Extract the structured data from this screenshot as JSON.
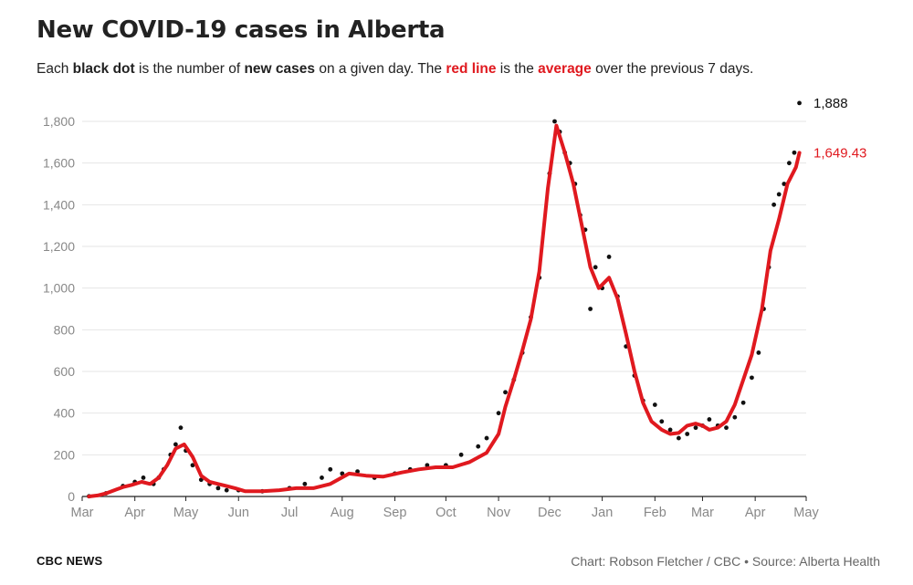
{
  "title": "New COVID-19 cases in Alberta",
  "subtitle": {
    "p1": "Each ",
    "p2": "black dot",
    "p3": " is the number of ",
    "p4": "new cases",
    "p5": " on a given day. The ",
    "p6": "red line",
    "p7": " is the ",
    "p8": "average",
    "p9": " over the previous 7 days."
  },
  "footer": {
    "left": "CBC NEWS",
    "right": "Chart: Robson Fletcher / CBC • Source: Alberta Health"
  },
  "colors": {
    "dots": "#111111",
    "average_line": "#e0191f",
    "grid": "#e6e6e6",
    "axis_text": "#888888"
  },
  "chart_data": {
    "type": "scatter",
    "xlim": [
      "2020-03-01",
      "2021-05-01"
    ],
    "ylim": [
      0,
      1900
    ],
    "grid": true,
    "ytick_values": [
      0,
      200,
      400,
      600,
      800,
      1000,
      1200,
      1400,
      1600,
      1800
    ],
    "ytick_labels": [
      "0",
      "200",
      "400",
      "600",
      "800",
      "1,000",
      "1,200",
      "1,400",
      "1,600",
      "1,800"
    ],
    "xtick_dates": [
      "2020-03-01",
      "2020-04-01",
      "2020-05-01",
      "2020-06-01",
      "2020-07-01",
      "2020-08-01",
      "2020-09-01",
      "2020-10-01",
      "2020-11-01",
      "2020-12-01",
      "2021-01-01",
      "2021-02-01",
      "2021-03-01",
      "2021-04-01",
      "2021-05-01"
    ],
    "xtick_labels": [
      "Mar",
      "Apr",
      "May",
      "Jun",
      "Jul",
      "Aug",
      "Sep",
      "Oct",
      "Nov",
      "Dec",
      "Jan",
      "Feb",
      "Mar",
      "Apr",
      "May"
    ],
    "end_labels": {
      "daily": "1,888",
      "average": "1,649.43"
    },
    "series": [
      {
        "kind": "daily_dots",
        "x": [
          "2020-03-05",
          "2020-03-15",
          "2020-03-25",
          "2020-04-01",
          "2020-04-06",
          "2020-04-12",
          "2020-04-15",
          "2020-04-18",
          "2020-04-22",
          "2020-04-25",
          "2020-04-28",
          "2020-05-01",
          "2020-05-05",
          "2020-05-10",
          "2020-05-15",
          "2020-05-20",
          "2020-05-25",
          "2020-06-01",
          "2020-06-15",
          "2020-07-01",
          "2020-07-10",
          "2020-07-20",
          "2020-07-25",
          "2020-08-01",
          "2020-08-10",
          "2020-08-20",
          "2020-09-01",
          "2020-09-10",
          "2020-09-20",
          "2020-10-01",
          "2020-10-10",
          "2020-10-20",
          "2020-10-25",
          "2020-11-01",
          "2020-11-05",
          "2020-11-10",
          "2020-11-15",
          "2020-11-20",
          "2020-11-25",
          "2020-12-01",
          "2020-12-04",
          "2020-12-07",
          "2020-12-10",
          "2020-12-13",
          "2020-12-16",
          "2020-12-19",
          "2020-12-22",
          "2020-12-25",
          "2020-12-28",
          "2021-01-01",
          "2021-01-05",
          "2021-01-10",
          "2021-01-15",
          "2021-01-20",
          "2021-01-25",
          "2021-02-01",
          "2021-02-05",
          "2021-02-10",
          "2021-02-15",
          "2021-02-20",
          "2021-02-25",
          "2021-03-01",
          "2021-03-05",
          "2021-03-10",
          "2021-03-15",
          "2021-03-20",
          "2021-03-25",
          "2021-03-30",
          "2021-04-03",
          "2021-04-06",
          "2021-04-09",
          "2021-04-12",
          "2021-04-15",
          "2021-04-18",
          "2021-04-21",
          "2021-04-24",
          "2021-04-27"
        ],
        "values": [
          1,
          15,
          50,
          70,
          90,
          60,
          90,
          130,
          200,
          250,
          330,
          220,
          150,
          80,
          60,
          40,
          30,
          30,
          25,
          40,
          60,
          90,
          130,
          110,
          120,
          90,
          110,
          130,
          150,
          150,
          200,
          240,
          280,
          400,
          500,
          560,
          690,
          860,
          1050,
          1550,
          1800,
          1750,
          1650,
          1600,
          1500,
          1350,
          1280,
          900,
          1100,
          1000,
          1150,
          960,
          720,
          580,
          460,
          440,
          360,
          320,
          280,
          300,
          330,
          340,
          370,
          340,
          330,
          380,
          450,
          570,
          690,
          900,
          1100,
          1400,
          1450,
          1500,
          1600,
          1650,
          1888
        ]
      },
      {
        "kind": "seven_day_average",
        "x": [
          "2020-03-05",
          "2020-03-10",
          "2020-03-15",
          "2020-03-20",
          "2020-03-25",
          "2020-03-30",
          "2020-04-05",
          "2020-04-10",
          "2020-04-15",
          "2020-04-20",
          "2020-04-25",
          "2020-04-30",
          "2020-05-05",
          "2020-05-10",
          "2020-05-15",
          "2020-05-20",
          "2020-05-25",
          "2020-05-30",
          "2020-06-05",
          "2020-06-15",
          "2020-06-25",
          "2020-07-05",
          "2020-07-15",
          "2020-07-25",
          "2020-08-05",
          "2020-08-15",
          "2020-08-25",
          "2020-09-05",
          "2020-09-15",
          "2020-09-25",
          "2020-10-05",
          "2020-10-15",
          "2020-10-25",
          "2020-11-01",
          "2020-11-05",
          "2020-11-10",
          "2020-11-15",
          "2020-11-20",
          "2020-11-25",
          "2020-11-30",
          "2020-12-05",
          "2020-12-10",
          "2020-12-15",
          "2020-12-20",
          "2020-12-25",
          "2020-12-30",
          "2021-01-05",
          "2021-01-10",
          "2021-01-15",
          "2021-01-20",
          "2021-01-25",
          "2021-01-30",
          "2021-02-05",
          "2021-02-10",
          "2021-02-15",
          "2021-02-20",
          "2021-02-25",
          "2021-03-01",
          "2021-03-05",
          "2021-03-10",
          "2021-03-15",
          "2021-03-20",
          "2021-03-25",
          "2021-03-30",
          "2021-04-05",
          "2021-04-10",
          "2021-04-15",
          "2021-04-20",
          "2021-04-25",
          "2021-04-27"
        ],
        "values": [
          0,
          5,
          15,
          30,
          45,
          55,
          70,
          60,
          90,
          150,
          230,
          250,
          190,
          100,
          70,
          60,
          50,
          40,
          25,
          25,
          30,
          40,
          40,
          60,
          110,
          100,
          95,
          115,
          130,
          140,
          140,
          165,
          210,
          300,
          430,
          560,
          700,
          850,
          1080,
          1480,
          1780,
          1650,
          1500,
          1300,
          1100,
          1000,
          1050,
          950,
          780,
          600,
          450,
          360,
          320,
          300,
          305,
          340,
          350,
          340,
          320,
          330,
          360,
          440,
          560,
          680,
          900,
          1180,
          1330,
          1500,
          1580,
          1649.43
        ]
      }
    ]
  }
}
